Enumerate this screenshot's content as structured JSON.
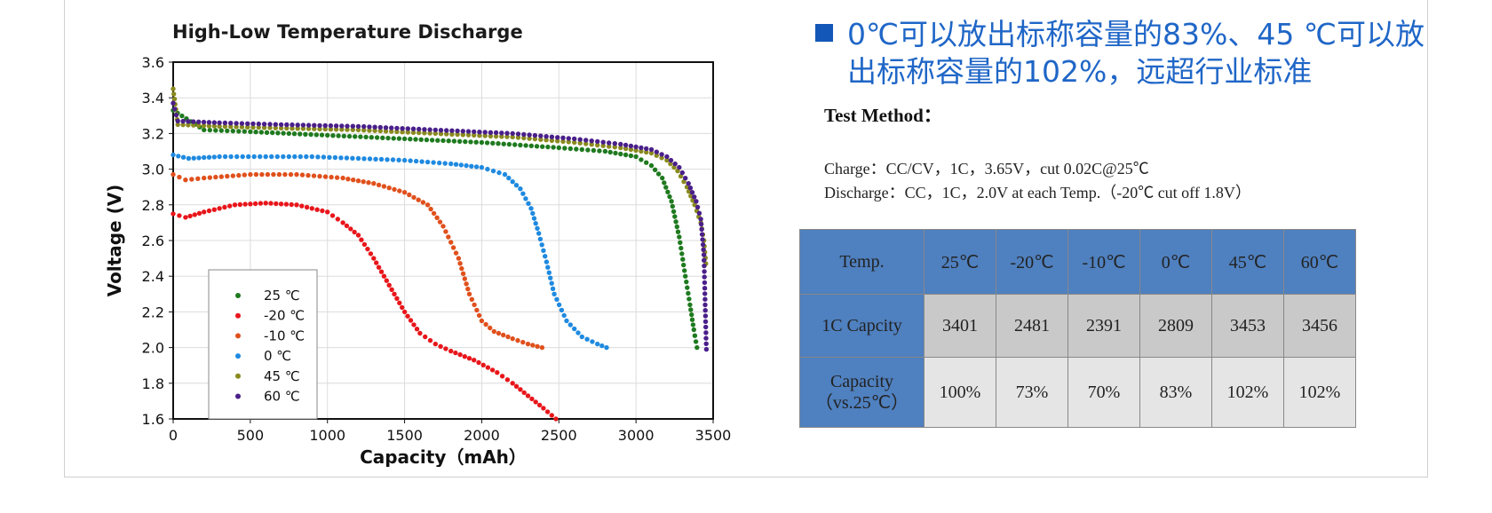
{
  "chart_data": {
    "type": "scatter",
    "title": "High-Low Temperature Discharge",
    "xlabel": "Capacity（mAh）",
    "ylabel": "Voltage (V)",
    "xlim": [
      0,
      3500
    ],
    "ylim": [
      1.6,
      3.6
    ],
    "xticks": [
      "0",
      "500",
      "1000",
      "1500",
      "2000",
      "2500",
      "3000",
      "3500"
    ],
    "yticks": [
      "1.6",
      "1.8",
      "2.0",
      "2.2",
      "2.4",
      "2.6",
      "2.8",
      "3.0",
      "3.2",
      "3.4",
      "3.6"
    ],
    "grid": true,
    "legend_position": "bottom-left",
    "series": [
      {
        "name": "25 ℃",
        "color": "#1f7a1f",
        "points": [
          [
            0,
            3.33
          ],
          [
            200,
            3.22
          ],
          [
            500,
            3.21
          ],
          [
            1000,
            3.19
          ],
          [
            1500,
            3.17
          ],
          [
            2000,
            3.15
          ],
          [
            2500,
            3.12
          ],
          [
            2800,
            3.1
          ],
          [
            3000,
            3.07
          ],
          [
            3100,
            3.02
          ],
          [
            3170,
            2.95
          ],
          [
            3230,
            2.82
          ],
          [
            3280,
            2.62
          ],
          [
            3320,
            2.4
          ],
          [
            3350,
            2.24
          ],
          [
            3375,
            2.1
          ],
          [
            3395,
            2.0
          ]
        ]
      },
      {
        "name": "-20 ℃",
        "color": "#e8161b",
        "points": [
          [
            0,
            2.75
          ],
          [
            80,
            2.73
          ],
          [
            200,
            2.76
          ],
          [
            400,
            2.8
          ],
          [
            600,
            2.81
          ],
          [
            800,
            2.8
          ],
          [
            1000,
            2.76
          ],
          [
            1100,
            2.7
          ],
          [
            1200,
            2.63
          ],
          [
            1300,
            2.5
          ],
          [
            1400,
            2.35
          ],
          [
            1500,
            2.2
          ],
          [
            1600,
            2.08
          ],
          [
            1700,
            2.02
          ],
          [
            1800,
            1.98
          ],
          [
            1950,
            1.93
          ],
          [
            2100,
            1.86
          ],
          [
            2200,
            1.8
          ],
          [
            2300,
            1.73
          ],
          [
            2400,
            1.66
          ],
          [
            2481,
            1.6
          ]
        ]
      },
      {
        "name": "-10 ℃",
        "color": "#e0501c",
        "points": [
          [
            0,
            2.97
          ],
          [
            80,
            2.94
          ],
          [
            200,
            2.95
          ],
          [
            500,
            2.97
          ],
          [
            800,
            2.97
          ],
          [
            1100,
            2.95
          ],
          [
            1300,
            2.92
          ],
          [
            1500,
            2.87
          ],
          [
            1650,
            2.8
          ],
          [
            1750,
            2.68
          ],
          [
            1850,
            2.5
          ],
          [
            1920,
            2.3
          ],
          [
            2000,
            2.15
          ],
          [
            2080,
            2.09
          ],
          [
            2200,
            2.05
          ],
          [
            2300,
            2.02
          ],
          [
            2391,
            2.0
          ]
        ]
      },
      {
        "name": "0 ℃",
        "color": "#1f8ae0",
        "points": [
          [
            0,
            3.08
          ],
          [
            100,
            3.06
          ],
          [
            300,
            3.07
          ],
          [
            600,
            3.07
          ],
          [
            900,
            3.07
          ],
          [
            1200,
            3.06
          ],
          [
            1500,
            3.05
          ],
          [
            1800,
            3.03
          ],
          [
            2000,
            3.01
          ],
          [
            2150,
            2.97
          ],
          [
            2250,
            2.89
          ],
          [
            2320,
            2.78
          ],
          [
            2370,
            2.64
          ],
          [
            2420,
            2.48
          ],
          [
            2470,
            2.3
          ],
          [
            2550,
            2.15
          ],
          [
            2650,
            2.06
          ],
          [
            2750,
            2.02
          ],
          [
            2809,
            2.0
          ]
        ]
      },
      {
        "name": "45 ℃",
        "color": "#8a8a1e",
        "points": [
          [
            0,
            3.45
          ],
          [
            30,
            3.25
          ],
          [
            300,
            3.24
          ],
          [
            700,
            3.23
          ],
          [
            1200,
            3.22
          ],
          [
            1700,
            3.2
          ],
          [
            2200,
            3.18
          ],
          [
            2600,
            3.15
          ],
          [
            2900,
            3.12
          ],
          [
            3100,
            3.09
          ],
          [
            3200,
            3.05
          ],
          [
            3270,
            2.99
          ],
          [
            3330,
            2.9
          ],
          [
            3380,
            2.8
          ],
          [
            3420,
            2.7
          ],
          [
            3440,
            2.6
          ],
          [
            3453,
            2.47
          ]
        ]
      },
      {
        "name": "60 ℃",
        "color": "#4a1f8a",
        "points": [
          [
            0,
            3.37
          ],
          [
            30,
            3.27
          ],
          [
            300,
            3.26
          ],
          [
            700,
            3.25
          ],
          [
            1200,
            3.24
          ],
          [
            1700,
            3.22
          ],
          [
            2200,
            3.2
          ],
          [
            2600,
            3.17
          ],
          [
            2900,
            3.14
          ],
          [
            3100,
            3.11
          ],
          [
            3200,
            3.07
          ],
          [
            3280,
            3.01
          ],
          [
            3340,
            2.92
          ],
          [
            3390,
            2.82
          ],
          [
            3420,
            2.72
          ],
          [
            3440,
            2.52
          ],
          [
            3456,
            1.99
          ]
        ]
      }
    ]
  },
  "headline": {
    "text": "0℃可以放出标称容量的83%、45 ℃可以放出标称容量的102%，远超行业标准",
    "bullet_color": "#1358b8",
    "text_color": "#1f66c7"
  },
  "test": {
    "title": "Test Method：",
    "charge": "Charge：CC/CV，1C，3.65V，cut 0.02C@25℃",
    "discharge": "Discharge：CC，1C，2.0V at each Temp.（-20℃  cut off  1.8V）"
  },
  "table": {
    "header": [
      "Temp.",
      "25℃",
      "-20℃",
      "-10℃",
      "0℃",
      "45℃",
      "60℃"
    ],
    "row_capacity": [
      "1C Capcity",
      "3401",
      "2481",
      "2391",
      "2809",
      "3453",
      "3456"
    ],
    "row_ratio_label_1": "Capacity",
    "row_ratio_label_2": "（vs.25℃）",
    "row_ratio": [
      "100%",
      "73%",
      "70%",
      "83%",
      "102%",
      "102%"
    ]
  }
}
